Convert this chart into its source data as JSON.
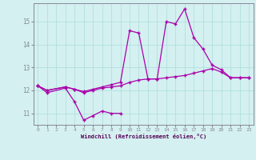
{
  "xlabel": "Windchill (Refroidissement éolien,°C)",
  "background_color": "#d4f0f0",
  "grid_color": "#aadddd",
  "line_color": "#aa00aa",
  "x": [
    0,
    1,
    2,
    3,
    4,
    5,
    6,
    7,
    8,
    9,
    10,
    11,
    12,
    13,
    14,
    15,
    16,
    17,
    18,
    19,
    20,
    21,
    22,
    23
  ],
  "line1_x": [
    0,
    1,
    3,
    4,
    5,
    6,
    7,
    8,
    9
  ],
  "line1_y": [
    12.2,
    11.9,
    12.1,
    11.5,
    10.7,
    10.9,
    11.1,
    11.0,
    11.0
  ],
  "line2_x": [
    0,
    1,
    3,
    4,
    5,
    6,
    7,
    8,
    9,
    10,
    11,
    12,
    13,
    14,
    15,
    16,
    17,
    18,
    19,
    20,
    21,
    22,
    23
  ],
  "line2_y": [
    12.2,
    12.0,
    12.15,
    12.05,
    11.9,
    12.0,
    12.1,
    12.15,
    12.2,
    12.35,
    12.45,
    12.5,
    12.5,
    12.55,
    12.6,
    12.65,
    12.75,
    12.85,
    12.95,
    12.8,
    12.55,
    12.55,
    12.55
  ],
  "line3_x": [
    0,
    1,
    3,
    4,
    5,
    6,
    7,
    8,
    9,
    10,
    11,
    12,
    13,
    14,
    15,
    16,
    17,
    18,
    19,
    20,
    21,
    22,
    23
  ],
  "line3_y": [
    12.2,
    12.0,
    12.15,
    12.05,
    11.95,
    12.05,
    12.15,
    12.25,
    12.35,
    14.6,
    14.5,
    12.5,
    12.5,
    15.0,
    14.9,
    15.55,
    14.3,
    13.8,
    13.1,
    12.9,
    12.55,
    12.55,
    12.55
  ],
  "ylim": [
    10.5,
    15.8
  ],
  "xlim": [
    -0.5,
    23.5
  ],
  "yticks": [
    11,
    12,
    13,
    14,
    15
  ],
  "xticks": [
    0,
    1,
    2,
    3,
    4,
    5,
    6,
    7,
    8,
    9,
    10,
    11,
    12,
    13,
    14,
    15,
    16,
    17,
    18,
    19,
    20,
    21,
    22,
    23
  ]
}
